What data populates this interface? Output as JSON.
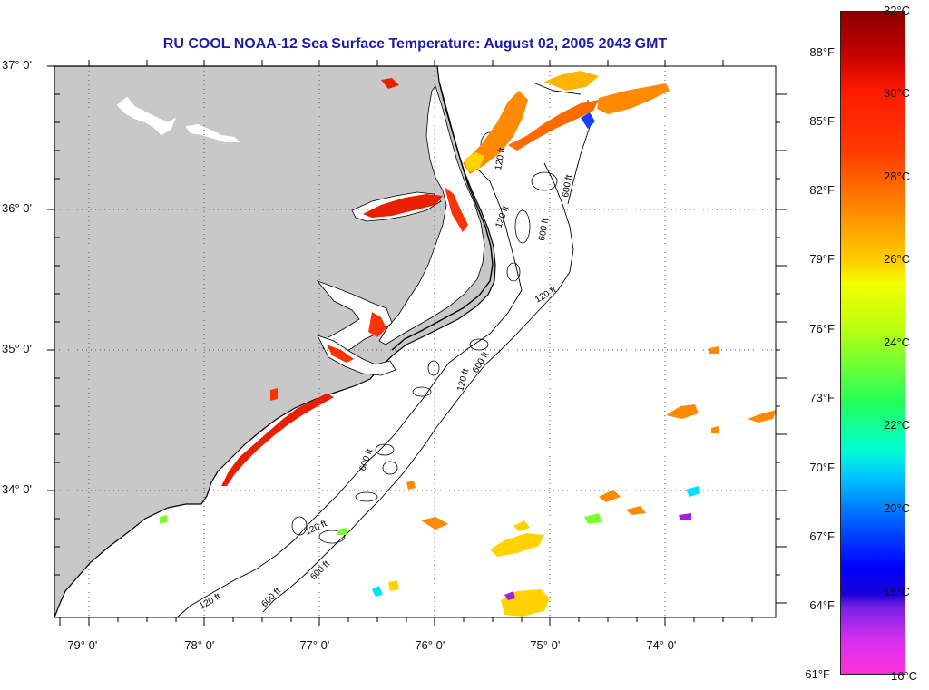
{
  "title": "RU COOL  NOAA-12  Sea Surface Temperature:  August 02, 2005 2043 GMT",
  "map": {
    "lat_labels": [
      "37° 0'",
      "36° 0'",
      "35° 0'",
      "34° 0'"
    ],
    "lon_labels": [
      "-79° 0'",
      "-78° 0'",
      "-77° 0'",
      "-76° 0'",
      "-75° 0'",
      "-74° 0'"
    ],
    "bathymetry_labels": [
      "120 ft",
      "600 ft",
      "120 ft",
      "600 ft",
      "120 ft",
      "600 ft",
      "120 ft",
      "600 ft",
      "120 ft",
      "600 ft",
      "120 ft",
      "600 ft"
    ]
  },
  "colorbar": {
    "fahrenheit_labels": [
      "88°F",
      "85°F",
      "82°F",
      "79°F",
      "76°F",
      "73°F",
      "70°F",
      "67°F",
      "64°F",
      "61°F"
    ],
    "celsius_labels": [
      "32°C",
      "30°C",
      "28°C",
      "26°C",
      "24°C",
      "22°C",
      "20°C",
      "18°C",
      "16°C"
    ]
  },
  "colors": {
    "title": "#1c1ca8",
    "land": "#c8c8c8",
    "ocean": "#ffffff",
    "warm": "#ff3300",
    "hot": "#e82000",
    "orange": "#ff8a00",
    "yellow": "#ffd200",
    "green": "#7cff30",
    "cyan": "#00e0ff",
    "blue": "#1a40ff",
    "violet": "#a020e0"
  }
}
